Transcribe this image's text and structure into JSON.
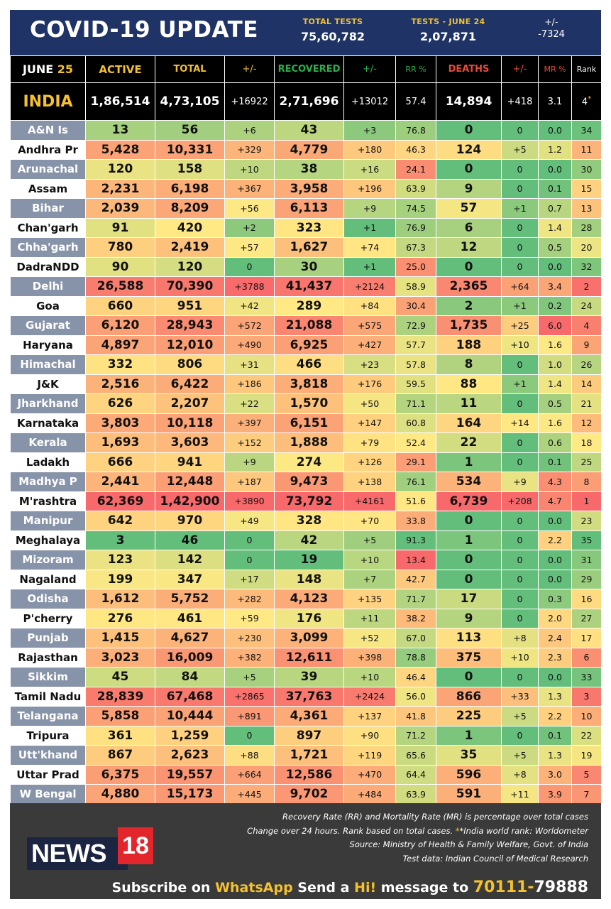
{
  "header": {
    "title": "COVID-19 UPDATE",
    "total_tests_label": "TOTAL TESTS",
    "total_tests": "75,60,782",
    "tests_day_label": "TESTS - JUNE 24",
    "tests_day": "2,07,871",
    "change_label": "+/-",
    "change": "-7324"
  },
  "columns": {
    "date_month": "JUNE",
    "date_day": "25",
    "active": "ACTIVE",
    "total": "TOTAL",
    "total_change": "+/-",
    "recovered": "RECOVERED",
    "recovered_change": "+/-",
    "rr": "RR %",
    "deaths": "DEATHS",
    "deaths_change": "+/-",
    "mr": "MR %",
    "rank": "Rank"
  },
  "colors": {
    "active": "#f2c12e",
    "total": "#f2c12e",
    "total_change": "#f2c12e",
    "recovered": "#2bb24c",
    "recovered_change": "#2bb24c",
    "rr": "#2bb24c",
    "deaths": "#e84a3a",
    "deaths_change": "#e84a3a",
    "mr": "#e84a3a",
    "rank": "#ffffff"
  },
  "india": {
    "name": "INDIA",
    "active": "1,86,514",
    "total": "4,73,105",
    "total_change": "+16922",
    "recovered": "2,71,696",
    "recovered_change": "+13012",
    "rr": "57.4",
    "deaths": "14,894",
    "deaths_change": "+418",
    "mr": "3.1",
    "rank": "4"
  },
  "rows": [
    {
      "state": "A&N Is",
      "active": "13",
      "total": "56",
      "total_change": "+6",
      "recovered": "43",
      "recovered_change": "+3",
      "rr": "76.8",
      "deaths": "0",
      "deaths_change": "0",
      "mr": "0.0",
      "rank": "34"
    },
    {
      "state": "Andhra Pr",
      "active": "5,428",
      "total": "10,331",
      "total_change": "+329",
      "recovered": "4,779",
      "recovered_change": "+180",
      "rr": "46.3",
      "deaths": "124",
      "deaths_change": "+5",
      "mr": "1.2",
      "rank": "11"
    },
    {
      "state": "Arunachal",
      "active": "120",
      "total": "158",
      "total_change": "+10",
      "recovered": "38",
      "recovered_change": "+16",
      "rr": "24.1",
      "deaths": "0",
      "deaths_change": "0",
      "mr": "0.0",
      "rank": "30"
    },
    {
      "state": "Assam",
      "active": "2,231",
      "total": "6,198",
      "total_change": "+367",
      "recovered": "3,958",
      "recovered_change": "+196",
      "rr": "63.9",
      "deaths": "9",
      "deaths_change": "0",
      "mr": "0.1",
      "rank": "15"
    },
    {
      "state": "Bihar",
      "active": "2,039",
      "total": "8,209",
      "total_change": "+56",
      "recovered": "6,113",
      "recovered_change": "+9",
      "rr": "74.5",
      "deaths": "57",
      "deaths_change": "+1",
      "mr": "0.7",
      "rank": "13"
    },
    {
      "state": "Chan'garh",
      "active": "91",
      "total": "420",
      "total_change": "+2",
      "recovered": "323",
      "recovered_change": "+1",
      "rr": "76.9",
      "deaths": "6",
      "deaths_change": "0",
      "mr": "1.4",
      "rank": "28"
    },
    {
      "state": "Chha'garh",
      "active": "780",
      "total": "2,419",
      "total_change": "+57",
      "recovered": "1,627",
      "recovered_change": "+74",
      "rr": "67.3",
      "deaths": "12",
      "deaths_change": "0",
      "mr": "0.5",
      "rank": "20"
    },
    {
      "state": "DadraNDD",
      "active": "90",
      "total": "120",
      "total_change": "0",
      "recovered": "30",
      "recovered_change": "+1",
      "rr": "25.0",
      "deaths": "0",
      "deaths_change": "0",
      "mr": "0.0",
      "rank": "32"
    },
    {
      "state": "Delhi",
      "active": "26,588",
      "total": "70,390",
      "total_change": "+3788",
      "recovered": "41,437",
      "recovered_change": "+2124",
      "rr": "58.9",
      "deaths": "2,365",
      "deaths_change": "+64",
      "mr": "3.4",
      "rank": "2"
    },
    {
      "state": "Goa",
      "active": "660",
      "total": "951",
      "total_change": "+42",
      "recovered": "289",
      "recovered_change": "+84",
      "rr": "30.4",
      "deaths": "2",
      "deaths_change": "+1",
      "mr": "0.2",
      "rank": "24"
    },
    {
      "state": "Gujarat",
      "active": "6,120",
      "total": "28,943",
      "total_change": "+572",
      "recovered": "21,088",
      "recovered_change": "+575",
      "rr": "72.9",
      "deaths": "1,735",
      "deaths_change": "+25",
      "mr": "6.0",
      "rank": "4"
    },
    {
      "state": "Haryana",
      "active": "4,897",
      "total": "12,010",
      "total_change": "+490",
      "recovered": "6,925",
      "recovered_change": "+427",
      "rr": "57.7",
      "deaths": "188",
      "deaths_change": "+10",
      "mr": "1.6",
      "rank": "9"
    },
    {
      "state": "Himachal",
      "active": "332",
      "total": "806",
      "total_change": "+31",
      "recovered": "466",
      "recovered_change": "+23",
      "rr": "57.8",
      "deaths": "8",
      "deaths_change": "0",
      "mr": "1.0",
      "rank": "26"
    },
    {
      "state": "J&K",
      "active": "2,516",
      "total": "6,422",
      "total_change": "+186",
      "recovered": "3,818",
      "recovered_change": "+176",
      "rr": "59.5",
      "deaths": "88",
      "deaths_change": "+1",
      "mr": "1.4",
      "rank": "14"
    },
    {
      "state": "Jharkhand",
      "active": "626",
      "total": "2,207",
      "total_change": "+22",
      "recovered": "1,570",
      "recovered_change": "+50",
      "rr": "71.1",
      "deaths": "11",
      "deaths_change": "0",
      "mr": "0.5",
      "rank": "21"
    },
    {
      "state": "Karnataka",
      "active": "3,803",
      "total": "10,118",
      "total_change": "+397",
      "recovered": "6,151",
      "recovered_change": "+147",
      "rr": "60.8",
      "deaths": "164",
      "deaths_change": "+14",
      "mr": "1.6",
      "rank": "12"
    },
    {
      "state": "Kerala",
      "active": "1,693",
      "total": "3,603",
      "total_change": "+152",
      "recovered": "1,888",
      "recovered_change": "+79",
      "rr": "52.4",
      "deaths": "22",
      "deaths_change": "0",
      "mr": "0.6",
      "rank": "18"
    },
    {
      "state": "Ladakh",
      "active": "666",
      "total": "941",
      "total_change": "+9",
      "recovered": "274",
      "recovered_change": "+126",
      "rr": "29.1",
      "deaths": "1",
      "deaths_change": "0",
      "mr": "0.1",
      "rank": "25"
    },
    {
      "state": "Madhya P",
      "active": "2,441",
      "total": "12,448",
      "total_change": "+187",
      "recovered": "9,473",
      "recovered_change": "+138",
      "rr": "76.1",
      "deaths": "534",
      "deaths_change": "+9",
      "mr": "4.3",
      "rank": "8"
    },
    {
      "state": "M'rashtra",
      "active": "62,369",
      "total": "1,42,900",
      "total_change": "+3890",
      "recovered": "73,792",
      "recovered_change": "+4161",
      "rr": "51.6",
      "deaths": "6,739",
      "deaths_change": "+208",
      "mr": "4.7",
      "rank": "1"
    },
    {
      "state": "Manipur",
      "active": "642",
      "total": "970",
      "total_change": "+49",
      "recovered": "328",
      "recovered_change": "+70",
      "rr": "33.8",
      "deaths": "0",
      "deaths_change": "0",
      "mr": "0.0",
      "rank": "23"
    },
    {
      "state": "Meghalaya",
      "active": "3",
      "total": "46",
      "total_change": "0",
      "recovered": "42",
      "recovered_change": "+5",
      "rr": "91.3",
      "deaths": "1",
      "deaths_change": "0",
      "mr": "2.2",
      "rank": "35"
    },
    {
      "state": "Mizoram",
      "active": "123",
      "total": "142",
      "total_change": "0",
      "recovered": "19",
      "recovered_change": "+10",
      "rr": "13.4",
      "deaths": "0",
      "deaths_change": "0",
      "mr": "0.0",
      "rank": "31"
    },
    {
      "state": "Nagaland",
      "active": "199",
      "total": "347",
      "total_change": "+17",
      "recovered": "148",
      "recovered_change": "+7",
      "rr": "42.7",
      "deaths": "0",
      "deaths_change": "0",
      "mr": "0.0",
      "rank": "29"
    },
    {
      "state": "Odisha",
      "active": "1,612",
      "total": "5,752",
      "total_change": "+282",
      "recovered": "4,123",
      "recovered_change": "+135",
      "rr": "71.7",
      "deaths": "17",
      "deaths_change": "0",
      "mr": "0.3",
      "rank": "16"
    },
    {
      "state": "P'cherry",
      "active": "276",
      "total": "461",
      "total_change": "+59",
      "recovered": "176",
      "recovered_change": "+11",
      "rr": "38.2",
      "deaths": "9",
      "deaths_change": "0",
      "mr": "2.0",
      "rank": "27"
    },
    {
      "state": "Punjab",
      "active": "1,415",
      "total": "4,627",
      "total_change": "+230",
      "recovered": "3,099",
      "recovered_change": "+52",
      "rr": "67.0",
      "deaths": "113",
      "deaths_change": "+8",
      "mr": "2.4",
      "rank": "17"
    },
    {
      "state": "Rajasthan",
      "active": "3,023",
      "total": "16,009",
      "total_change": "+382",
      "recovered": "12,611",
      "recovered_change": "+398",
      "rr": "78.8",
      "deaths": "375",
      "deaths_change": "+10",
      "mr": "2.3",
      "rank": "6"
    },
    {
      "state": "Sikkim",
      "active": "45",
      "total": "84",
      "total_change": "+5",
      "recovered": "39",
      "recovered_change": "+10",
      "rr": "46.4",
      "deaths": "0",
      "deaths_change": "0",
      "mr": "0.0",
      "rank": "33"
    },
    {
      "state": "Tamil Nadu",
      "active": "28,839",
      "total": "67,468",
      "total_change": "+2865",
      "recovered": "37,763",
      "recovered_change": "+2424",
      "rr": "56.0",
      "deaths": "866",
      "deaths_change": "+33",
      "mr": "1.3",
      "rank": "3"
    },
    {
      "state": "Telangana",
      "active": "5,858",
      "total": "10,444",
      "total_change": "+891",
      "recovered": "4,361",
      "recovered_change": "+137",
      "rr": "41.8",
      "deaths": "225",
      "deaths_change": "+5",
      "mr": "2.2",
      "rank": "10"
    },
    {
      "state": "Tripura",
      "active": "361",
      "total": "1,259",
      "total_change": "0",
      "recovered": "897",
      "recovered_change": "+90",
      "rr": "71.2",
      "deaths": "1",
      "deaths_change": "0",
      "mr": "0.1",
      "rank": "22"
    },
    {
      "state": "Utt'khand",
      "active": "867",
      "total": "2,623",
      "total_change": "+88",
      "recovered": "1,721",
      "recovered_change": "+119",
      "rr": "65.6",
      "deaths": "35",
      "deaths_change": "+5",
      "mr": "1.3",
      "rank": "19"
    },
    {
      "state": "Uttar Prad",
      "active": "6,375",
      "total": "19,557",
      "total_change": "+664",
      "recovered": "12,586",
      "recovered_change": "+470",
      "rr": "64.4",
      "deaths": "596",
      "deaths_change": "+8",
      "mr": "3.0",
      "rank": "5"
    },
    {
      "state": "W Bengal",
      "active": "4,880",
      "total": "15,173",
      "total_change": "+445",
      "recovered": "9,702",
      "recovered_change": "+484",
      "rr": "63.9",
      "deaths": "591",
      "deaths_change": "+11",
      "mr": "3.9",
      "rank": "7"
    }
  ],
  "footer": {
    "note1": "Recovery Rate (RR) and Mortality Rate (MR) is percentage over total cases",
    "note2a": "Change over 24 hours. Rank based on total cases.",
    "note2b": "*India world rank: Worldometer",
    "note3": "Source: Ministry of Health & Family Welfare, Govt. of India",
    "note4": "Test data: Indian Council of Medical Research",
    "logo_word": "NEWS",
    "logo_num": "18",
    "sub1": "Subscribe on",
    "sub2": "WhatsApp",
    "sub3": "Send a",
    "sub4": "Hi!",
    "sub5": "message to",
    "sub6": "70111-",
    "sub7": "79888"
  }
}
